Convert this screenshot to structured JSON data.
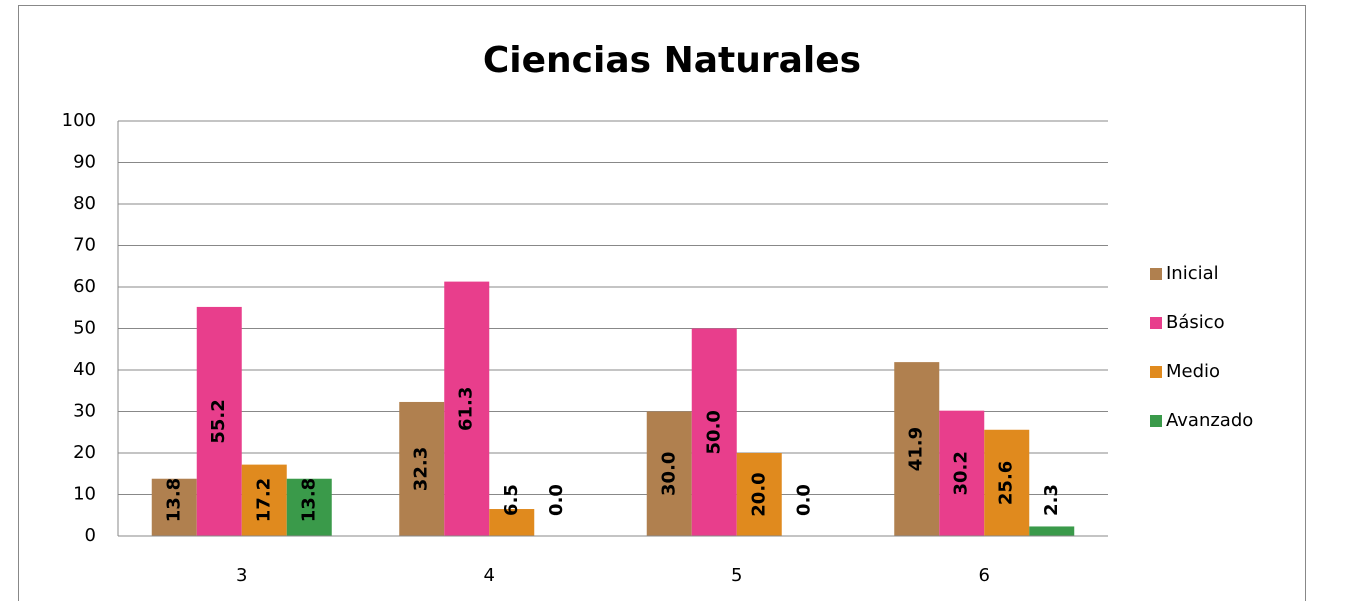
{
  "chart_data": {
    "type": "bar",
    "title": "Ciencias Naturales",
    "categories": [
      "3",
      "4",
      "5",
      "6"
    ],
    "series": [
      {
        "name": "Inicial",
        "color": "#b0804f",
        "values": [
          13.8,
          32.3,
          30,
          41.9
        ],
        "value_labels": [
          "13.8",
          "32.3",
          "30.0",
          "41.9"
        ]
      },
      {
        "name": "Básico",
        "color": "#e83e8c",
        "values": [
          55.2,
          61.3,
          50,
          30.2
        ],
        "value_labels": [
          "55.2",
          "61.3",
          "50.0",
          "30.2"
        ]
      },
      {
        "name": "Medio",
        "color": "#e08a1e",
        "values": [
          17.2,
          6.5,
          20,
          25.6
        ],
        "value_labels": [
          "17.2",
          "6.5",
          "20.0",
          "25.6"
        ]
      },
      {
        "name": "Avanzado",
        "color": "#3a9a4a",
        "values": [
          13.8,
          0,
          0,
          2.3
        ],
        "value_labels": [
          "13.8",
          "0.0",
          "0.0",
          "2.3"
        ]
      }
    ],
    "ylim": [
      0,
      100
    ],
    "yticks": [
      0,
      10,
      20,
      30,
      40,
      50,
      60,
      70,
      80,
      90,
      100
    ],
    "grid": true,
    "legend": "right"
  }
}
